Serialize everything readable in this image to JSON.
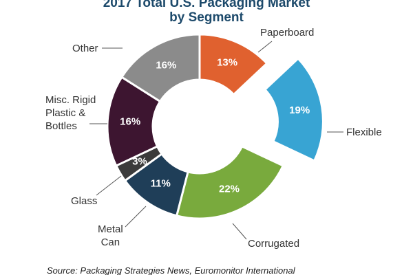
{
  "chart_data": {
    "type": "donut",
    "title": [
      "2017 Total U.S. Packaging Market",
      "by Segment"
    ],
    "categories": [
      "Paperboard",
      "Flexible",
      "Corrugated",
      "Metal\nCan",
      "Glass",
      "Misc. Rigid\nPlastic &\nBottles",
      "Other"
    ],
    "values": [
      13,
      19,
      22,
      11,
      3,
      16,
      16
    ],
    "value_labels": [
      "13%",
      "19%",
      "22%",
      "11%",
      "3%",
      "16%",
      "16%"
    ],
    "colors": [
      "#e0612f",
      "#38a4d3",
      "#79aa3d",
      "#1f3e58",
      "#3b3b3b",
      "#3d1530",
      "#8b8b8b"
    ],
    "source": "Source: Packaging Strategies News, Euromonitor International"
  }
}
